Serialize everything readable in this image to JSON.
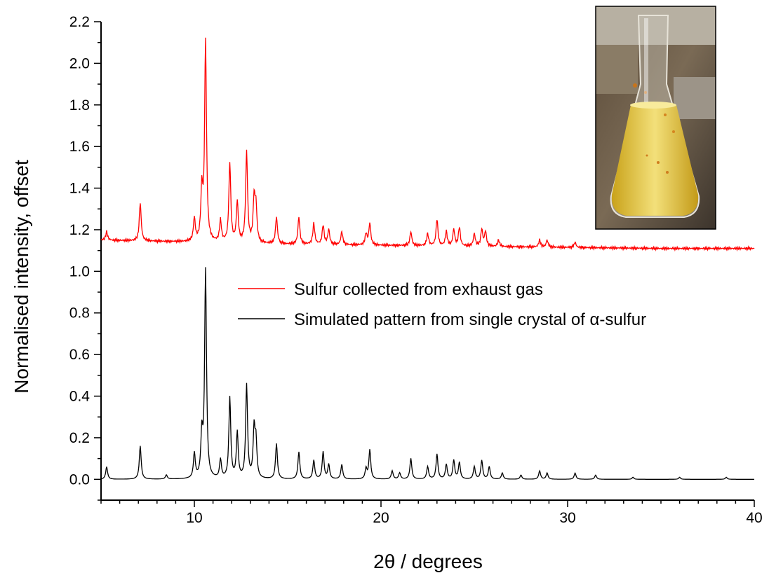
{
  "chart_data": {
    "type": "line",
    "xlabel": "2θ / degrees",
    "ylabel": "Normalised intensity, offset",
    "xlim": [
      5,
      40
    ],
    "ylim": [
      -0.1,
      2.2
    ],
    "x_ticks": [
      10,
      20,
      30,
      40
    ],
    "y_ticks": [
      0.0,
      0.2,
      0.4,
      0.6,
      0.8,
      1.0,
      1.2,
      1.4,
      1.6,
      1.8,
      2.0,
      2.2
    ],
    "y_tick_labels": [
      "0.0",
      "0.2",
      "0.4",
      "0.6",
      "0.8",
      "1.0",
      "1.2",
      "1.4",
      "1.6",
      "1.8",
      "2.0",
      "2.2"
    ],
    "grid": false,
    "legend_position": "center-right",
    "inset": "photograph of an Erlenmeyer flask containing yellow liquid with sulfur particles",
    "series": [
      {
        "name": "Sulfur collected from exhaust gas",
        "color": "#ff0000",
        "baseline": [
          [
            5.0,
            1.15
          ],
          [
            10,
            1.14
          ],
          [
            15,
            1.13
          ],
          [
            20,
            1.125
          ],
          [
            25,
            1.12
          ],
          [
            30,
            1.115
          ],
          [
            35,
            1.11
          ],
          [
            40,
            1.11
          ]
        ],
        "peaks": [
          [
            5.3,
            1.19
          ],
          [
            7.1,
            1.33
          ],
          [
            10.0,
            1.25
          ],
          [
            10.4,
            1.38
          ],
          [
            10.6,
            2.1
          ],
          [
            11.4,
            1.24
          ],
          [
            11.9,
            1.52
          ],
          [
            12.3,
            1.33
          ],
          [
            12.8,
            1.57
          ],
          [
            13.2,
            1.34
          ],
          [
            13.3,
            1.3
          ],
          [
            14.4,
            1.26
          ],
          [
            15.6,
            1.26
          ],
          [
            16.4,
            1.23
          ],
          [
            16.9,
            1.22
          ],
          [
            17.2,
            1.2
          ],
          [
            17.9,
            1.19
          ],
          [
            19.2,
            1.18
          ],
          [
            19.4,
            1.23
          ],
          [
            21.6,
            1.19
          ],
          [
            22.5,
            1.18
          ],
          [
            23.0,
            1.25
          ],
          [
            23.5,
            1.19
          ],
          [
            23.9,
            1.2
          ],
          [
            24.2,
            1.21
          ],
          [
            25.0,
            1.18
          ],
          [
            25.4,
            1.2
          ],
          [
            25.6,
            1.19
          ],
          [
            26.3,
            1.15
          ],
          [
            28.5,
            1.15
          ],
          [
            28.9,
            1.15
          ],
          [
            30.4,
            1.14
          ]
        ]
      },
      {
        "name": "Simulated pattern from single crystal of α-sulfur",
        "color": "#000000",
        "baseline": [
          [
            5.0,
            0.0
          ],
          [
            40.0,
            0.0
          ]
        ],
        "peaks": [
          [
            5.3,
            0.06
          ],
          [
            7.1,
            0.16
          ],
          [
            8.5,
            0.02
          ],
          [
            10.0,
            0.12
          ],
          [
            10.4,
            0.2
          ],
          [
            10.6,
            1.0
          ],
          [
            11.4,
            0.09
          ],
          [
            11.9,
            0.39
          ],
          [
            12.3,
            0.22
          ],
          [
            12.8,
            0.45
          ],
          [
            13.2,
            0.23
          ],
          [
            13.3,
            0.17
          ],
          [
            14.4,
            0.17
          ],
          [
            15.6,
            0.13
          ],
          [
            16.4,
            0.09
          ],
          [
            16.9,
            0.13
          ],
          [
            17.2,
            0.07
          ],
          [
            17.9,
            0.07
          ],
          [
            19.2,
            0.05
          ],
          [
            19.4,
            0.14
          ],
          [
            20.6,
            0.04
          ],
          [
            21.0,
            0.03
          ],
          [
            21.6,
            0.1
          ],
          [
            22.5,
            0.06
          ],
          [
            23.0,
            0.12
          ],
          [
            23.5,
            0.07
          ],
          [
            23.9,
            0.09
          ],
          [
            24.2,
            0.08
          ],
          [
            25.0,
            0.06
          ],
          [
            25.4,
            0.09
          ],
          [
            25.8,
            0.06
          ],
          [
            26.5,
            0.03
          ],
          [
            27.5,
            0.02
          ],
          [
            28.5,
            0.04
          ],
          [
            28.9,
            0.03
          ],
          [
            30.4,
            0.03
          ],
          [
            31.5,
            0.02
          ],
          [
            33.5,
            0.01
          ],
          [
            36.0,
            0.01
          ],
          [
            38.5,
            0.01
          ]
        ]
      }
    ]
  }
}
